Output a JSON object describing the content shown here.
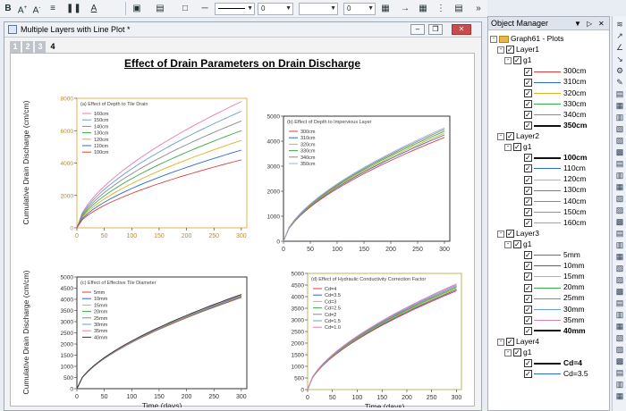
{
  "toolbar": {
    "font_size": "0",
    "line_width": "0",
    "line_style": "0",
    "icons": [
      "bold-icon",
      "font-grow-icon",
      "font-shrink-icon",
      "align-icon",
      "columns-icon",
      "font-color-icon",
      "fill-icon",
      "pattern-icon",
      "border-icon",
      "line-icon",
      "arrow-icon",
      "more-icon"
    ]
  },
  "graph_window": {
    "title": "Multiple Layers with Line Plot *",
    "layer_tabs": [
      "1",
      "2",
      "3",
      "4"
    ],
    "active_tab": "4",
    "page_title": "Effect of Drain Parameters on Drain Discharge"
  },
  "object_manager": {
    "title": "Object Manager",
    "root": "Graph61 - Plots",
    "layers": [
      {
        "name": "Layer1",
        "group": "g1",
        "items": [
          {
            "label": "300cm",
            "color": "#e03a3a",
            "bold": false
          },
          {
            "label": "310cm",
            "color": "#2a6ad0",
            "bold": false
          },
          {
            "label": "320cm",
            "color": "#e0b020",
            "bold": false
          },
          {
            "label": "330cm",
            "color": "#3aa848",
            "bold": false
          },
          {
            "label": "340cm",
            "color": "#8a8a8a",
            "bold": false
          },
          {
            "label": "350cm",
            "color": "#111111",
            "bold": true
          }
        ]
      },
      {
        "name": "Layer2",
        "group": "g1",
        "items": [
          {
            "label": "100cm",
            "color": "#111111",
            "bold": true
          },
          {
            "label": "110cm",
            "color": "#2a6ad0",
            "bold": false
          },
          {
            "label": "120cm",
            "color": "#e0b020",
            "bold": false
          },
          {
            "label": "130cm",
            "color": "#3aa848",
            "bold": false
          },
          {
            "label": "140cm",
            "color": "#8a8a8a",
            "bold": false
          },
          {
            "label": "150cm",
            "color": "#6a9ae0",
            "bold": false
          },
          {
            "label": "160cm",
            "color": "#e77ab0",
            "bold": false
          }
        ]
      },
      {
        "name": "Layer3",
        "group": "g1",
        "items": [
          {
            "label": "5mm",
            "color": "#e03a3a",
            "bold": false
          },
          {
            "label": "10mm",
            "color": "#2a6ad0",
            "bold": false
          },
          {
            "label": "15mm",
            "color": "#e0b020",
            "bold": false
          },
          {
            "label": "20mm",
            "color": "#3aa848",
            "bold": false
          },
          {
            "label": "25mm",
            "color": "#8a8a8a",
            "bold": false
          },
          {
            "label": "30mm",
            "color": "#6a9ae0",
            "bold": false
          },
          {
            "label": "35mm",
            "color": "#e77ab0",
            "bold": false
          },
          {
            "label": "40mm",
            "color": "#111111",
            "bold": true
          }
        ]
      },
      {
        "name": "Layer4",
        "group": "g1",
        "items": [
          {
            "label": "Cd=4",
            "color": "#111111",
            "bold": true
          },
          {
            "label": "Cd=3.5",
            "color": "#2a6ad0",
            "bold": false
          }
        ]
      }
    ]
  },
  "chart_data": [
    {
      "type": "line",
      "title": "(a) Effect of Depth to Tile Drain",
      "ylabel": "Cumulative Drain Discharge (cm/cm)",
      "xlabel": "",
      "xlim": [
        0,
        310
      ],
      "ylim": [
        0,
        8000
      ],
      "xticks": [
        0,
        50,
        100,
        150,
        200,
        250,
        300
      ],
      "yticks": [
        0,
        2000,
        4000,
        6000,
        8000
      ],
      "series": [
        {
          "name": "160cm",
          "color": "#e77ab0",
          "end": 7800
        },
        {
          "name": "150cm",
          "color": "#6a9ae0",
          "end": 7200
        },
        {
          "name": "140cm",
          "color": "#8a8a8a",
          "end": 6600
        },
        {
          "name": "130cm",
          "color": "#3aa848",
          "end": 6000
        },
        {
          "name": "120cm",
          "color": "#e0b020",
          "end": 5400
        },
        {
          "name": "110cm",
          "color": "#2a6ad0",
          "end": 4800
        },
        {
          "name": "100cm",
          "color": "#e03a3a",
          "end": 4200
        }
      ]
    },
    {
      "type": "line",
      "title": "(b) Effect of Depth to Impervious Layer",
      "ylabel": "",
      "xlabel": "",
      "xlim": [
        0,
        310
      ],
      "ylim": [
        0,
        5000
      ],
      "xticks": [
        0,
        50,
        100,
        150,
        200,
        250,
        300
      ],
      "yticks": [
        0,
        1000,
        2000,
        3000,
        4000,
        5000
      ],
      "series": [
        {
          "name": "300cm",
          "color": "#e03a3a",
          "end": 4150
        },
        {
          "name": "310cm",
          "color": "#2a6ad0",
          "end": 4250
        },
        {
          "name": "320cm",
          "color": "#e0b020",
          "end": 4320
        },
        {
          "name": "330cm",
          "color": "#3aa848",
          "end": 4400
        },
        {
          "name": "340cm",
          "color": "#8a8a8a",
          "end": 4470
        },
        {
          "name": "350cm",
          "color": "#9ab0d8",
          "end": 4530
        }
      ]
    },
    {
      "type": "line",
      "title": "(c) Effect of Effective Tile Diameter",
      "ylabel": "Cumulative Drain Discharge (cm/cm)",
      "xlabel": "Time (days)",
      "xlim": [
        0,
        310
      ],
      "ylim": [
        0,
        5000
      ],
      "xticks": [
        0,
        50,
        100,
        150,
        200,
        250,
        300
      ],
      "yticks": [
        0,
        500,
        1000,
        1500,
        2000,
        2500,
        3000,
        3500,
        4000,
        4500,
        5000
      ],
      "series": [
        {
          "name": "5mm",
          "color": "#e03a3a",
          "end": 4080
        },
        {
          "name": "10mm",
          "color": "#2a6ad0",
          "end": 4100
        },
        {
          "name": "15mm",
          "color": "#e0b020",
          "end": 4120
        },
        {
          "name": "20mm",
          "color": "#3aa848",
          "end": 4140
        },
        {
          "name": "25mm",
          "color": "#8a8a8a",
          "end": 4160
        },
        {
          "name": "30mm",
          "color": "#6a9ae0",
          "end": 4180
        },
        {
          "name": "35mm",
          "color": "#e77ab0",
          "end": 4200
        },
        {
          "name": "40mm",
          "color": "#333333",
          "end": 4220
        }
      ]
    },
    {
      "type": "line",
      "title": "(d) Effect of Hydraulic Conductivity Correction Factor",
      "ylabel": "",
      "xlabel": "Time (days)",
      "xlim": [
        0,
        310
      ],
      "ylim": [
        0,
        5000
      ],
      "xticks": [
        0,
        50,
        100,
        150,
        200,
        250,
        300
      ],
      "yticks": [
        0,
        500,
        1000,
        1500,
        2000,
        2500,
        3000,
        3500,
        4000,
        4500,
        5000
      ],
      "series": [
        {
          "name": "Cd=4",
          "color": "#e03a3a",
          "end": 4250
        },
        {
          "name": "Cd=3.5",
          "color": "#2a6ad0",
          "end": 4300
        },
        {
          "name": "Cd=3",
          "color": "#e0b020",
          "end": 4350
        },
        {
          "name": "Cd=2.5",
          "color": "#3aa848",
          "end": 4400
        },
        {
          "name": "Cd=2",
          "color": "#8a8a8a",
          "end": 4450
        },
        {
          "name": "Cd=1.5",
          "color": "#6a9ae0",
          "end": 4500
        },
        {
          "name": "Cd=1.0",
          "color": "#e77ab0",
          "end": 4550
        }
      ]
    }
  ]
}
